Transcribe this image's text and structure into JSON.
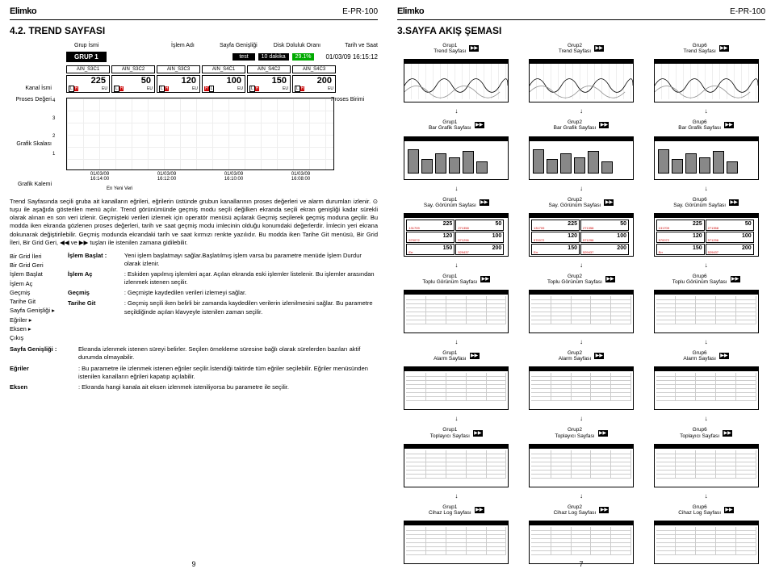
{
  "brand": "Elimko",
  "model": "E-PR-100",
  "left": {
    "section_title": "4.2. TREND SAYFASI",
    "labels": {
      "grup_ismi": "Grup İsmi",
      "islem_adi": "İşlem Adı",
      "sayfa_genisligi": "Sayfa Genişliği",
      "disk_doluluk": "Disk Doluluk Oranı",
      "tarih_saat": "Tarih ve Saat",
      "kanal_ismi": "Kanal İsmi",
      "proses_degeri": "Proses Değeri",
      "proses_birimi": "Proses Birimi",
      "grafik_skalasi": "Grafik Skalası",
      "grafik_kalemi": "Grafik Kalemi",
      "en_yeni": "En Yeni Veri"
    },
    "grup_bar": {
      "grup": "GRUP 1",
      "test": "test",
      "dakika": "10 dakika",
      "pct": "29.1%",
      "datetime": "01/03/09 16:15:12"
    },
    "channels": [
      "AIN_S3C1",
      "AIN_S3C2",
      "AIN_S3C3",
      "AIN_S4C1",
      "AIN_S4C2",
      "AIN_S4C3"
    ],
    "values": [
      "225",
      "50",
      "120",
      "100",
      "150",
      "200"
    ],
    "lh": {
      "l": "L",
      "h": "H",
      "eu": "EU"
    },
    "graph_times": [
      {
        "d": "01/03/09",
        "t": "16:14:00"
      },
      {
        "d": "01/03/09",
        "t": "16:12:00"
      },
      {
        "d": "01/03/09",
        "t": "16:10:00"
      },
      {
        "d": "01/03/09",
        "t": "16:08:00"
      }
    ],
    "scale": [
      "4",
      "3",
      "2",
      "1"
    ],
    "body_text": "Trend Sayfasında seçili gruba ait kanalların eğrileri, eğrilerin üstünde grubun kanallarının proses değerleri ve alarm durumları izlenir. ⊙ tuşu ile aşağıda gösterilen menü açılır. Trend görünümünde geçmiş modu seçili değilken ekranda seçili ekran genişliği kadar sürekli olarak alınan en son veri izlenir. Geçmişteki verileri izlemek için operatör menüsü açılarak Geçmiş seçilerek geçmiş moduna geçilir. Bu modda iken ekranda gözlenen proses değerleri, tarih ve saat geçmiş modu imlecinin olduğu konumdaki değerlerdir. İmlecin yeri ekrana dokunarak değiştirilebilir. Geçmiş modunda ekrandaki tarih ve saat kırmızı renkte yazılıdır. Bu modda iken Tarihe Git menüsü, Bir Grid İleri, Bir Grid Geri, ◀◀ ve ▶▶ tuşları ile istenilen zamana gidilebilir.",
    "menu_items": [
      "Bir Grid İleri",
      "Bir Grid Geri",
      "İşlem Başlat",
      "İşlem Aç",
      "Geçmiş",
      "Tarihe Git",
      "Sayfa Genişliği ▸",
      "Eğriler ▸",
      "Eksen ▸",
      "Çıkış"
    ],
    "defs": [
      {
        "label": "İşlem Başlat :",
        "text": "Yeni işlem başlatmayı sağlar.Başlatılmış işlem varsa bu parametre menüde İşlem Durdur olarak izlenir."
      },
      {
        "label": "İşlem Aç",
        "text": ": Eskiden yapılmış işlemleri açar. Açılan ekranda eski işlemler listelenir. Bu işlemler arasından izlenmek istenen seçilir."
      },
      {
        "label": "Geçmiş",
        "text": ": Geçmişte kaydedilen verileri izlemeyi sağlar."
      },
      {
        "label": "Tarihe Git",
        "text": ": Geçmiş seçili iken belirli bir zamanda kaydedilen verilerin izlenilmesini sağlar. Bu parametre seçildiğinde açılan klavyeyle istenilen zaman seçilir."
      }
    ],
    "bottom_defs": [
      {
        "label": "Sayfa Genişliği :",
        "text": "Ekranda izlenmek istenen süreyi belirler. Seçilen örnekleme süresine bağlı olarak sürelerden bazıları aktif durumda olmayabilir."
      },
      {
        "label": "Eğriler",
        "text": ": Bu parametre ile izlenmek istenen eğriler seçilir.İstendiği taktirde tüm eğriler seçilebilir. Eğriler menüsünden istenilen kanalların eğrileri kapatıp açılabilir."
      },
      {
        "label": "Eksen",
        "text": ": Ekranda hangi kanala ait eksen izlenmek isteniliyorsa bu parametre ile seçilir."
      }
    ],
    "page_num": "9"
  },
  "right": {
    "section_title": "3.SAYFA AKIŞ ŞEMASI",
    "groups": [
      "Grup1",
      "Grup2",
      "Grup6"
    ],
    "page_types": [
      "Trend Sayfası",
      "Bar Grafik Sayfası",
      "Say. Görünüm Sayfası",
      "Toplu Görünüm Sayfası",
      "Alarm Sayfası",
      "Toplayıcı Sayfası",
      "Cihaz Log Sayfası"
    ],
    "say_values": [
      {
        "v": "225",
        "s1": "131709",
        "s2": ""
      },
      {
        "v": "50",
        "s1": "271358",
        "s2": ""
      },
      {
        "v": "120",
        "s1": "570072",
        "s2": ""
      },
      {
        "v": "100",
        "s1": "571296",
        "s2": ""
      },
      {
        "v": "150",
        "s1": "Err",
        "s2": ""
      },
      {
        "v": "200",
        "s1": "529437",
        "s2": ""
      }
    ],
    "nav": {
      "left": "◀◀",
      "right": "▶▶"
    },
    "page_num": "7"
  }
}
